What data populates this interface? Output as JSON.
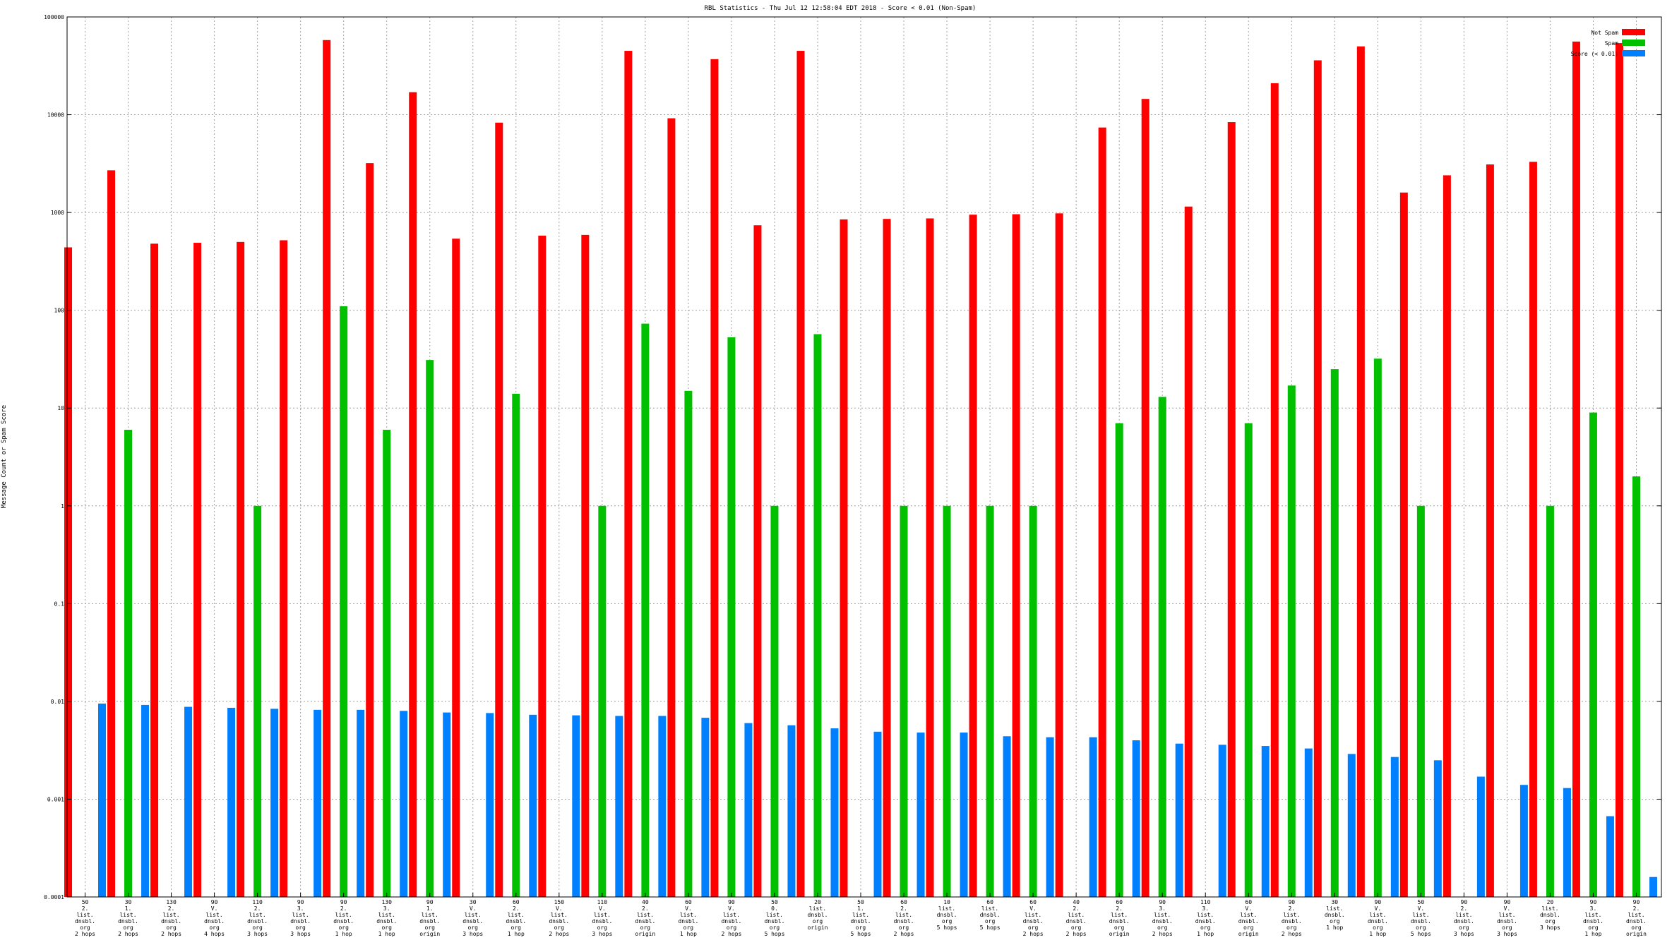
{
  "chart_data": {
    "type": "bar",
    "title": "RBL Statistics - Thu Jul 12 12:58:04 EDT 2018 - Score < 0.01 (Non-Spam)",
    "xlabel": "",
    "ylabel": "Message Count or Spam Score",
    "yscale": "log",
    "ylim": [
      0.0001,
      100000
    ],
    "ytick_labels": [
      "0.0001",
      "0.001",
      "0.01",
      "0.1",
      "1",
      "10",
      "100",
      "1000",
      "10000",
      "100000"
    ],
    "grid": true,
    "legend_position": "top-right",
    "categories": [
      [
        "50",
        "2.",
        "list.",
        "dnsbl.",
        "org",
        "2 hops"
      ],
      [
        "30",
        "1.",
        "list.",
        "dnsbl.",
        "org",
        "2 hops"
      ],
      [
        "130",
        "2.",
        "list.",
        "dnsbl.",
        "org",
        "2 hops"
      ],
      [
        "90",
        "V.",
        "list.",
        "dnsbl.",
        "org",
        "4 hops"
      ],
      [
        "110",
        "2.",
        "list.",
        "dnsbl.",
        "org",
        "3 hops"
      ],
      [
        "90",
        "3.",
        "list.",
        "dnsbl.",
        "org",
        "3 hops"
      ],
      [
        "90",
        "2.",
        "list.",
        "dnsbl.",
        "org",
        "1 hop"
      ],
      [
        "130",
        "3.",
        "list.",
        "dnsbl.",
        "org",
        "1 hop"
      ],
      [
        "90",
        "1.",
        "list.",
        "dnsbl.",
        "org",
        "origin"
      ],
      [
        "30",
        "V.",
        "list.",
        "dnsbl.",
        "org",
        "3 hops"
      ],
      [
        "60",
        "2.",
        "list.",
        "dnsbl.",
        "org",
        "1 hop"
      ],
      [
        "150",
        "V.",
        "list.",
        "dnsbl.",
        "org",
        "2 hops"
      ],
      [
        "110",
        "V.",
        "list.",
        "dnsbl.",
        "org",
        "3 hops"
      ],
      [
        "40",
        "2.",
        "list.",
        "dnsbl.",
        "org",
        "origin"
      ],
      [
        "60",
        "V.",
        "list.",
        "dnsbl.",
        "org",
        "1 hop"
      ],
      [
        "90",
        "V.",
        "list.",
        "dnsbl.",
        "org",
        "2 hops"
      ],
      [
        "50",
        "0.",
        "list.",
        "dnsbl.",
        "org",
        "5 hops"
      ],
      [
        "20",
        "list.",
        "dnsbl.",
        "org",
        "origin"
      ],
      [
        "50",
        "1.",
        "list.",
        "dnsbl.",
        "org",
        "5 hops"
      ],
      [
        "60",
        "2.",
        "list.",
        "dnsbl.",
        "org",
        "2 hops"
      ],
      [
        "10",
        "list.",
        "dnsbl.",
        "org",
        "5 hops"
      ],
      [
        "60",
        "list.",
        "dnsbl.",
        "org",
        "5 hops"
      ],
      [
        "60",
        "V.",
        "list.",
        "dnsbl.",
        "org",
        "2 hops"
      ],
      [
        "40",
        "2.",
        "list.",
        "dnsbl.",
        "org",
        "2 hops"
      ],
      [
        "60",
        "2.",
        "list.",
        "dnsbl.",
        "org",
        "origin"
      ],
      [
        "90",
        "3.",
        "list.",
        "dnsbl.",
        "org",
        "2 hops"
      ],
      [
        "110",
        "3.",
        "list.",
        "dnsbl.",
        "org",
        "1 hop"
      ],
      [
        "60",
        "V.",
        "list.",
        "dnsbl.",
        "org",
        "origin"
      ],
      [
        "90",
        "2.",
        "list.",
        "dnsbl.",
        "org",
        "2 hops"
      ],
      [
        "30",
        "list.",
        "dnsbl.",
        "org",
        "1 hop"
      ],
      [
        "90",
        "V.",
        "list.",
        "dnsbl.",
        "org",
        "1 hop"
      ],
      [
        "50",
        "V.",
        "list.",
        "dnsbl.",
        "org",
        "5 hops"
      ],
      [
        "90",
        "2.",
        "list.",
        "dnsbl.",
        "org",
        "3 hops"
      ],
      [
        "90",
        "V.",
        "list.",
        "dnsbl.",
        "org",
        "3 hops"
      ],
      [
        "20",
        "list.",
        "dnsbl.",
        "org",
        "3 hops"
      ],
      [
        "90",
        "3.",
        "list.",
        "dnsbl.",
        "org",
        "1 hop"
      ],
      [
        "90",
        "2.",
        "list.",
        "dnsbl.",
        "org",
        "origin"
      ]
    ],
    "series": [
      {
        "name": "Not Spam",
        "color": "#ff0000",
        "values": [
          440,
          2700,
          480,
          490,
          500,
          520,
          58000,
          3200,
          17000,
          540,
          8300,
          580,
          590,
          45000,
          9200,
          37000,
          740,
          45000,
          850,
          860,
          870,
          950,
          960,
          980,
          7400,
          14500,
          1150,
          8400,
          21000,
          36000,
          50000,
          1600,
          2400,
          3100,
          3300,
          56000,
          54000
        ]
      },
      {
        "name": "Spam",
        "color": "#00c000",
        "values": [
          null,
          6,
          null,
          null,
          1,
          null,
          110,
          6,
          31,
          null,
          14,
          null,
          1,
          73,
          15,
          53,
          1,
          57,
          null,
          1,
          1,
          1,
          1,
          null,
          7,
          13,
          null,
          7,
          17,
          25,
          32,
          1,
          null,
          null,
          1,
          9,
          2
        ]
      },
      {
        "name": "Score (< 0.01)",
        "color": "#0080ff",
        "values": [
          0.0095,
          0.0092,
          0.0088,
          0.0086,
          0.0084,
          0.0082,
          0.0082,
          0.008,
          0.0077,
          0.0076,
          0.0073,
          0.0072,
          0.0071,
          0.0071,
          0.0068,
          0.006,
          0.0057,
          0.0053,
          0.0049,
          0.0048,
          0.0048,
          0.0044,
          0.0043,
          0.0043,
          0.004,
          0.0037,
          0.0036,
          0.0035,
          0.0033,
          0.0029,
          0.0027,
          0.0025,
          0.0017,
          0.0014,
          0.0013,
          0.00067,
          0.00016
        ]
      }
    ]
  }
}
